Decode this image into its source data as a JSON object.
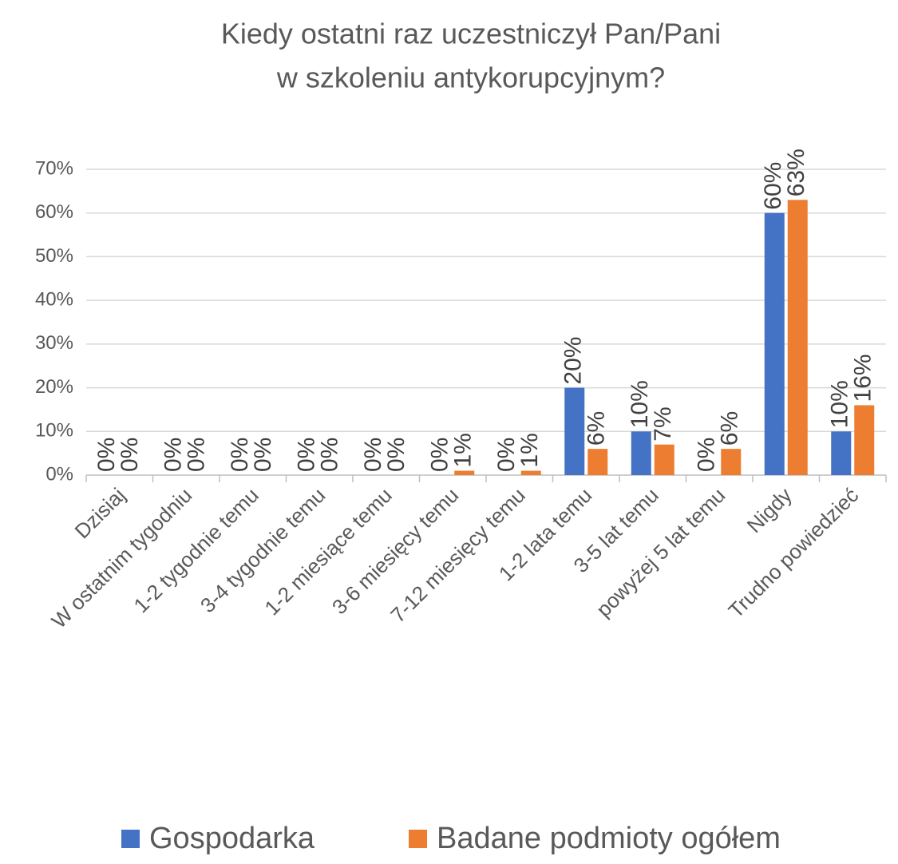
{
  "chart_data": {
    "type": "bar",
    "title": [
      "Kiedy ostatni raz uczestniczył Pan/Pani",
      "w szkoleniu antykorupcyjnym?"
    ],
    "categories": [
      "Dzisiaj",
      "W ostatnim tygodniu",
      "1-2 tygodnie temu",
      "3-4 tygodnie temu",
      "1-2 miesiące temu",
      "3-6 miesięcy temu",
      "7-12 miesięcy temu",
      "1-2 lata temu",
      "3-5 lat temu",
      "powyżej 5 lat temu",
      "Nigdy",
      "Trudno powiedzieć"
    ],
    "series": [
      {
        "name": "Gospodarka",
        "color": "#4472c4",
        "values": [
          0,
          0,
          0,
          0,
          0,
          0,
          0,
          20,
          10,
          0,
          60,
          10
        ],
        "value_labels": [
          "0%",
          "0%",
          "0%",
          "0%",
          "0%",
          "0%",
          "0%",
          "20%",
          "10%",
          "0%",
          "60%",
          "10%"
        ]
      },
      {
        "name": "Badane podmioty ogółem",
        "color": "#ed7d31",
        "values": [
          0,
          0,
          0,
          0,
          0,
          1,
          1,
          6,
          7,
          6,
          63,
          16
        ],
        "value_labels": [
          "0%",
          "0%",
          "0%",
          "0%",
          "0%",
          "1%",
          "1%",
          "6%",
          "7%",
          "6%",
          "63%",
          "16%"
        ]
      }
    ],
    "ylim": [
      0,
      70
    ],
    "yticks": [
      {
        "value": 0,
        "label": "0%"
      },
      {
        "value": 10,
        "label": "10%"
      },
      {
        "value": 20,
        "label": "20%"
      },
      {
        "value": 30,
        "label": "30%"
      },
      {
        "value": 40,
        "label": "40%"
      },
      {
        "value": 50,
        "label": "50%"
      },
      {
        "value": 60,
        "label": "60%"
      },
      {
        "value": 70,
        "label": "70%"
      }
    ],
    "grid": true,
    "legend": "bottom"
  }
}
